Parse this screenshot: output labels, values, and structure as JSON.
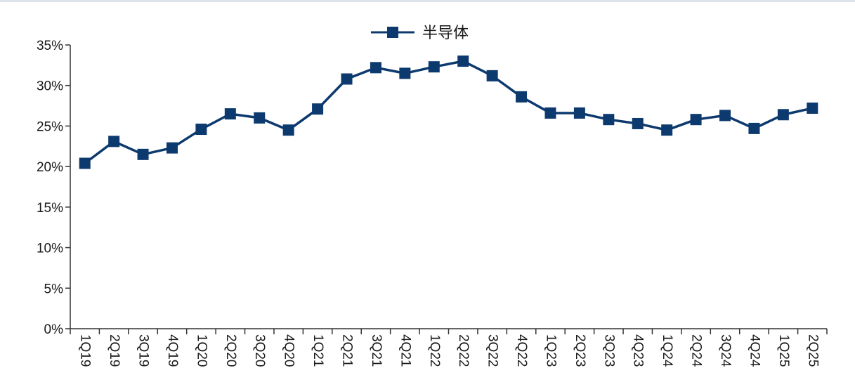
{
  "chart_data": {
    "type": "line",
    "title": "",
    "xlabel": "",
    "ylabel": "",
    "ylim": [
      0,
      35
    ],
    "yticks": [
      0,
      5,
      10,
      15,
      20,
      25,
      30,
      35
    ],
    "y_tick_format": "percent",
    "grid": false,
    "legend_position": "top-center",
    "categories": [
      "1Q19",
      "2Q19",
      "3Q19",
      "4Q19",
      "1Q20",
      "2Q20",
      "3Q20",
      "4Q20",
      "1Q21",
      "2Q21",
      "3Q21",
      "4Q21",
      "1Q22",
      "2Q22",
      "3Q22",
      "4Q22",
      "1Q23",
      "2Q23",
      "3Q23",
      "4Q23",
      "1Q24",
      "2Q24",
      "3Q24",
      "4Q24",
      "1Q25",
      "2Q25"
    ],
    "series": [
      {
        "name": "半导体",
        "color": "#0d3a6e",
        "marker": "square",
        "values": [
          20.4,
          23.1,
          21.5,
          22.3,
          24.6,
          26.5,
          26.0,
          24.5,
          27.1,
          30.8,
          32.2,
          31.5,
          32.3,
          33.0,
          31.2,
          28.6,
          26.6,
          26.6,
          25.8,
          25.3,
          24.5,
          25.8,
          26.3,
          24.7,
          26.4,
          27.2
        ]
      }
    ]
  }
}
